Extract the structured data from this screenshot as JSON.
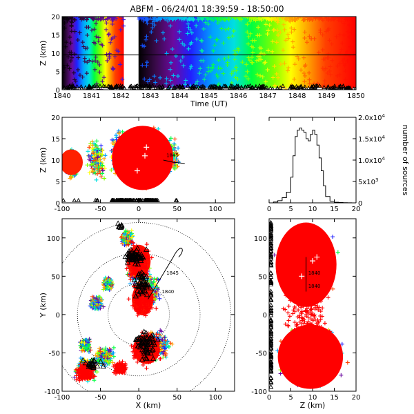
{
  "title": "ABFM - 06/24/01 18:39:59 - 18:50:00",
  "chart_data": [
    {
      "id": "time-height",
      "type": "scatter",
      "xlabel": "Time (UT)",
      "ylabel": "Z (km)",
      "xlim": [
        1840,
        1850
      ],
      "ylim": [
        0,
        20
      ],
      "xticks": [
        "1840",
        "1841",
        "1842",
        "1843",
        "1844",
        "1845",
        "1846",
        "1847",
        "1848",
        "1849",
        "1850"
      ],
      "yticks": [
        "0",
        "5",
        "10",
        "15",
        "20"
      ],
      "reference_line_y": 9.5,
      "gap_x": [
        1842.1,
        1842.6
      ],
      "color_scale": "rainbow by time"
    },
    {
      "id": "x-z",
      "type": "scatter",
      "xlabel": "",
      "ylabel": "Z (km)",
      "xlim": [
        -100,
        125
      ],
      "ylim": [
        0,
        20
      ],
      "xticks": [
        "-100",
        "-50",
        "0",
        "50",
        "100"
      ],
      "yticks": [
        "0",
        "5",
        "10",
        "15",
        "20"
      ],
      "annotations": [
        "1845"
      ]
    },
    {
      "id": "histogram",
      "type": "line",
      "xlabel": "",
      "ylabel": "number of sources",
      "xlim": [
        0,
        20
      ],
      "ylim": [
        0,
        20000
      ],
      "xticks": [
        "0",
        "5",
        "10",
        "15",
        "20"
      ],
      "yticks": [
        {
          "base": "0",
          "exp": ""
        },
        {
          "base": "5x10",
          "exp": "3"
        },
        {
          "base": "1.0x10",
          "exp": "4"
        },
        {
          "base": "1.5x10",
          "exp": "4"
        },
        {
          "base": "2.0x10",
          "exp": "4"
        }
      ],
      "x": [
        0,
        1,
        2,
        3,
        4,
        5,
        5.5,
        6,
        6.5,
        7,
        7.5,
        8,
        8.5,
        9,
        9.5,
        10,
        10.5,
        11,
        11.5,
        12,
        12.5,
        13,
        14,
        15,
        16,
        17,
        18,
        19,
        20
      ],
      "values": [
        0,
        200,
        500,
        1200,
        2500,
        6000,
        11000,
        15500,
        17000,
        17500,
        17000,
        16500,
        15000,
        14500,
        16000,
        17000,
        16000,
        13500,
        10500,
        7500,
        4000,
        1500,
        400,
        150,
        80,
        40,
        20,
        10,
        0
      ]
    },
    {
      "id": "x-y",
      "type": "scatter",
      "xlabel": "X (km)",
      "ylabel": "Y (km)",
      "xlim": [
        -100,
        125
      ],
      "ylim": [
        -100,
        125
      ],
      "xticks": [
        "-100",
        "-50",
        "0",
        "50",
        "100"
      ],
      "yticks": [
        "-100",
        "-50",
        "0",
        "50",
        "100"
      ],
      "annotations": [
        "1845",
        "1840"
      ],
      "range_rings": true
    },
    {
      "id": "z-y",
      "type": "scatter",
      "xlabel": "Z (km)",
      "ylabel": "",
      "xlim": [
        0,
        20
      ],
      "ylim": [
        -100,
        125
      ],
      "xticks": [
        "0",
        "5",
        "10",
        "15",
        "20"
      ],
      "yticks": [
        "-100",
        "-50",
        "0",
        "50",
        "100"
      ],
      "annotations": [
        "1840",
        "1840"
      ]
    }
  ]
}
